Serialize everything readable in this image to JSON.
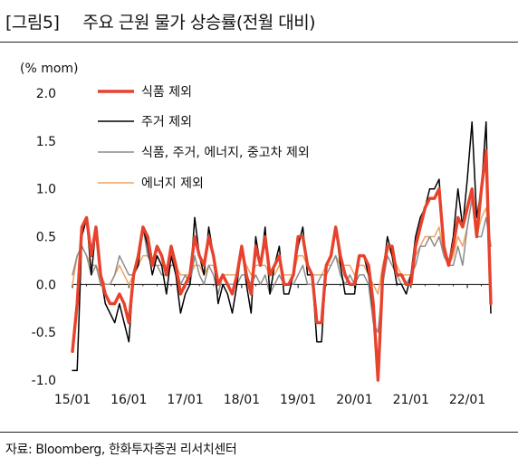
{
  "header": {
    "figure_num": "[그림5]",
    "title": "주요 근원 물가 상승률(전월 대비)"
  },
  "source": "자료: Bloomberg, 한화투자증권 리서치센터",
  "chart_data": {
    "type": "line",
    "unit_label": "(% mom)",
    "ylim": [
      -1.0,
      2.0
    ],
    "y_ticks": [
      "2.0",
      "1.5",
      "1.0",
      "0.5",
      "0.0",
      "-0.5",
      "-1.0"
    ],
    "x_ticks": [
      "15/01",
      "16/01",
      "17/01",
      "18/01",
      "19/01",
      "20/01",
      "21/01",
      "22/01"
    ],
    "x_start": "2015-01",
    "n_points": 90,
    "series": [
      {
        "name": "식품 제외",
        "color": "#e8412c",
        "width": 3.4,
        "values": [
          -0.7,
          -0.2,
          0.6,
          0.7,
          0.3,
          0.6,
          0.1,
          -0.1,
          -0.2,
          -0.2,
          -0.1,
          -0.2,
          -0.4,
          0.1,
          0.3,
          0.6,
          0.5,
          0.2,
          0.4,
          0.3,
          0.1,
          0.4,
          0.2,
          -0.1,
          0.0,
          0.1,
          0.5,
          0.3,
          0.2,
          0.5,
          0.3,
          0.0,
          0.1,
          0.0,
          -0.1,
          0.1,
          0.4,
          0.1,
          -0.1,
          0.4,
          0.2,
          0.5,
          0.1,
          0.2,
          0.3,
          0.0,
          0.0,
          0.1,
          0.5,
          0.5,
          0.2,
          0.1,
          -0.4,
          -0.4,
          0.2,
          0.3,
          0.6,
          0.3,
          0.1,
          0.0,
          0.0,
          0.3,
          0.3,
          0.2,
          -0.2,
          -1.0,
          0.1,
          0.4,
          0.4,
          0.1,
          0.1,
          0.0,
          0.0,
          0.4,
          0.6,
          0.8,
          0.9,
          0.9,
          1.0,
          0.4,
          0.2,
          0.4,
          0.7,
          0.6,
          0.8,
          1.0,
          0.5,
          1.0,
          1.4,
          -0.2
        ]
      },
      {
        "name": "주거 제외",
        "color": "#000000",
        "width": 1.5,
        "values": [
          -0.9,
          -0.9,
          0.5,
          0.7,
          0.1,
          0.6,
          0.1,
          -0.2,
          -0.3,
          -0.4,
          -0.2,
          -0.4,
          -0.6,
          0.1,
          0.2,
          0.6,
          0.4,
          0.1,
          0.3,
          0.2,
          -0.1,
          0.3,
          0.1,
          -0.3,
          -0.1,
          0.0,
          0.7,
          0.3,
          0.1,
          0.6,
          0.3,
          -0.2,
          0.0,
          -0.1,
          -0.3,
          0.0,
          0.4,
          0.0,
          -0.3,
          0.5,
          0.2,
          0.6,
          -0.1,
          0.2,
          0.4,
          -0.1,
          -0.1,
          0.1,
          0.4,
          0.6,
          0.1,
          0.1,
          -0.6,
          -0.6,
          0.2,
          0.3,
          0.6,
          0.2,
          -0.1,
          -0.1,
          -0.1,
          0.3,
          0.3,
          0.1,
          -0.3,
          -1.0,
          0.1,
          0.5,
          0.3,
          0.0,
          0.0,
          -0.1,
          0.1,
          0.5,
          0.7,
          0.8,
          1.0,
          1.0,
          1.1,
          0.4,
          0.2,
          0.5,
          1.0,
          0.6,
          1.1,
          1.7,
          0.7,
          1.0,
          1.7,
          -0.3
        ]
      },
      {
        "name": "식품, 주거, 에너지, 중고차 제외",
        "color": "#8c8c8c",
        "width": 1.5,
        "values": [
          0.1,
          0.3,
          0.4,
          0.3,
          0.1,
          0.2,
          0.0,
          0.0,
          0.0,
          0.1,
          0.3,
          0.2,
          0.1,
          0.1,
          0.2,
          0.6,
          0.3,
          0.2,
          0.2,
          0.1,
          0.1,
          0.2,
          0.2,
          0.0,
          0.1,
          0.0,
          0.3,
          0.1,
          0.0,
          0.2,
          0.1,
          -0.1,
          0.1,
          0.0,
          0.0,
          0.0,
          0.1,
          0.1,
          0.0,
          0.1,
          0.0,
          0.1,
          -0.1,
          0.0,
          0.1,
          0.0,
          0.0,
          0.0,
          0.1,
          0.2,
          0.0,
          0.0,
          0.0,
          0.1,
          0.1,
          0.2,
          0.3,
          0.1,
          0.0,
          0.1,
          0.0,
          0.1,
          0.1,
          0.0,
          -0.4,
          -0.5,
          0.0,
          0.3,
          0.2,
          0.1,
          0.0,
          0.0,
          0.1,
          0.2,
          0.4,
          0.4,
          0.5,
          0.4,
          0.5,
          0.3,
          0.2,
          0.2,
          0.4,
          0.2,
          0.6,
          0.9,
          0.5,
          0.5,
          0.7,
          0.4
        ]
      },
      {
        "name": "에너지 제외",
        "color": "#f0a35e",
        "width": 1.5,
        "values": [
          0.0,
          0.3,
          0.4,
          0.3,
          0.2,
          0.2,
          0.1,
          0.0,
          0.0,
          0.1,
          0.2,
          0.1,
          0.0,
          0.1,
          0.2,
          0.3,
          0.3,
          0.2,
          0.2,
          0.2,
          0.2,
          0.2,
          0.2,
          0.1,
          0.1,
          0.1,
          0.2,
          0.2,
          0.1,
          0.2,
          0.2,
          0.0,
          0.1,
          0.1,
          0.1,
          0.1,
          0.3,
          0.2,
          0.1,
          0.2,
          0.2,
          0.2,
          0.1,
          0.1,
          0.2,
          0.1,
          0.1,
          0.1,
          0.3,
          0.3,
          0.2,
          0.1,
          0.1,
          0.1,
          0.2,
          0.2,
          0.3,
          0.2,
          0.2,
          0.2,
          0.1,
          0.2,
          0.2,
          0.1,
          0.0,
          -0.1,
          0.2,
          0.4,
          0.3,
          0.2,
          0.1,
          0.1,
          0.1,
          0.3,
          0.4,
          0.5,
          0.5,
          0.5,
          0.6,
          0.3,
          0.2,
          0.3,
          0.5,
          0.4,
          0.6,
          0.9,
          0.5,
          0.7,
          0.8,
          0.4
        ]
      }
    ]
  }
}
